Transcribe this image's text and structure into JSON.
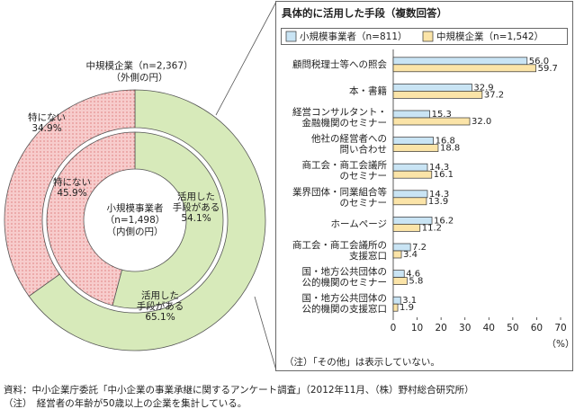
{
  "chart_data": [
    {
      "type": "donut",
      "categories": [
        "活用した\n手段がある",
        "特にない"
      ],
      "colors": [
        "#d7eaba",
        "#f7cccc"
      ],
      "pattern": "dots",
      "series": [
        {
          "name": "小規模事業者\n（n=1,498）\n（内側の円）",
          "values": [
            54.1,
            45.9
          ],
          "value_labels": [
            "54.1%",
            "45.9%"
          ]
        },
        {
          "name": "中規模企業（n=2,367）\n（外側の円）",
          "values": [
            65.1,
            34.9
          ],
          "value_labels": [
            "65.1%",
            "34.9%"
          ]
        }
      ]
    },
    {
      "type": "bar",
      "orientation": "horizontal",
      "title": "具体的に活用した手段（複数回答）",
      "categories": [
        "顧問税理士等への照会",
        "本・書籍",
        "経営コンサルタント・\n金融機関のセミナー",
        "他社の経営者への\n問い合わせ",
        "商工会・商工会議所\nのセミナー",
        "業界団体・同業組合等\nのセミナー",
        "ホームページ",
        "商工会・商工会議所の\n支援窓口",
        "国・地方公共団体の\n公的機関のセミナー",
        "国・地方公共団体の\n公的機関の支援窓口"
      ],
      "series": [
        {
          "name": "小規模事業者（n=811）",
          "color": "#c9e4f4",
          "values": [
            56.0,
            32.9,
            15.3,
            16.8,
            14.3,
            14.3,
            16.2,
            7.2,
            4.6,
            3.1
          ],
          "value_labels": [
            "56.0",
            "32.9",
            "15.3",
            "16.8",
            "14.3",
            "14.3",
            "16.2",
            "7.2",
            "4.6",
            "3.1"
          ]
        },
        {
          "name": "中規模企業（n=1,542）",
          "color": "#fbe4a8",
          "values": [
            59.7,
            37.2,
            32.0,
            18.8,
            16.1,
            13.9,
            11.2,
            3.4,
            5.8,
            1.9
          ],
          "value_labels": [
            "59.7",
            "37.2",
            "32.0",
            "18.8",
            "16.1",
            "13.9",
            "11.2",
            "3.4",
            "5.8",
            "1.9"
          ]
        }
      ],
      "xlim": [
        0,
        70
      ],
      "xticks": [
        0,
        10,
        20,
        30,
        40,
        50,
        60,
        70
      ],
      "x_unit": "（%）",
      "note": "（注）「その他」は表示していない。"
    }
  ],
  "notes": [
    "資料：中小企業庁委託「中小企業の事業承継に関するアンケート調査」（2012年11月、（株）野村総合研究所）",
    "（注）　経営者の年齢が50歳以上の企業を集計している。"
  ]
}
